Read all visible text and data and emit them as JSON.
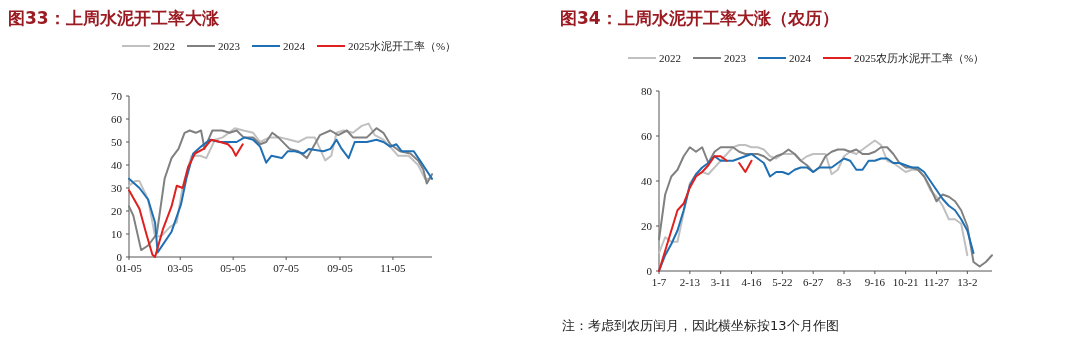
{
  "chart_data": [
    {
      "type": "line",
      "title": "图33：上周水泥开工率大涨",
      "legend": "top",
      "xlim": [
        "--01-05",
        "--12-20"
      ],
      "ylim": [
        0,
        70
      ],
      "yticks": [
        0,
        10,
        20,
        30,
        40,
        50,
        60,
        70
      ],
      "xticks": [
        {
          "value": "--01-05",
          "label": "01-05"
        },
        {
          "value": "--03-05",
          "label": "03-05"
        },
        {
          "value": "--05-05",
          "label": "05-05"
        },
        {
          "value": "--07-05",
          "label": "07-05"
        },
        {
          "value": "--09-05",
          "label": "09-05"
        },
        {
          "value": "--11-05",
          "label": "11-05"
        }
      ],
      "series": [
        {
          "name": "2022",
          "color": "#c0c0c0",
          "x": [
            "--01-05",
            "--01-12",
            "--01-17",
            "--01-27",
            "--02-04",
            "--02-11",
            "--02-21",
            "--03-01",
            "--03-08",
            "--03-18",
            "--03-28",
            "--04-04",
            "--04-14",
            "--04-23",
            "--05-07",
            "--05-17",
            "--05-28",
            "--06-05",
            "--06-16",
            "--06-28",
            "--07-09",
            "--07-19",
            "--07-29",
            "--08-07",
            "--08-19",
            "--08-26",
            "--09-01",
            "--09-09",
            "--09-20",
            "--09-30",
            "--10-08",
            "--10-15",
            "--10-25",
            "--11-04",
            "--11-11",
            "--11-23",
            "--12-04",
            "--12-12",
            "--12-20"
          ],
          "values": [
            31,
            33,
            33,
            25,
            9,
            9,
            13,
            15,
            31,
            44,
            44,
            43,
            51,
            52,
            56,
            55,
            54,
            50,
            52,
            52,
            51,
            50,
            52,
            52,
            42,
            44,
            54,
            55,
            54,
            57,
            58,
            53,
            51,
            47,
            44,
            44,
            40,
            34,
            34
          ]
        },
        {
          "name": "2023",
          "color": "#808080",
          "x": [
            "--01-05",
            "--01-10",
            "--01-19",
            "--01-27",
            "--02-06",
            "--02-15",
            "--02-23",
            "--03-03",
            "--03-10",
            "--03-16",
            "--03-23",
            "--03-29",
            "--04-02",
            "--04-11",
            "--04-22",
            "--05-01",
            "--05-09",
            "--05-17",
            "--05-28",
            "--06-05",
            "--06-12",
            "--06-19",
            "--06-26",
            "--07-09",
            "--07-19",
            "--07-29",
            "--08-13",
            "--08-25",
            "--09-03",
            "--09-13",
            "--09-20",
            "--10-06",
            "--10-17",
            "--10-25",
            "--11-02",
            "--11-13",
            "--11-25",
            "--12-04",
            "--12-10",
            "--12-14",
            "--12-20"
          ],
          "values": [
            22,
            18,
            3,
            5,
            10,
            34,
            43,
            47,
            54,
            55,
            54,
            55,
            47,
            55,
            55,
            54,
            55,
            52,
            52,
            49,
            50,
            54,
            52,
            47,
            46,
            43,
            53,
            55,
            53,
            55,
            52,
            52,
            56,
            54,
            49,
            46,
            45,
            42,
            38,
            32,
            36
          ]
        },
        {
          "name": "2024",
          "color": "#1f6fb4",
          "x": [
            "--01-05",
            "--01-17",
            "--01-27",
            "--02-04",
            "--02-07",
            "--02-23",
            "--03-06",
            "--03-12",
            "--03-20",
            "--03-29",
            "--04-08",
            "--04-20",
            "--05-01",
            "--05-09",
            "--05-18",
            "--05-28",
            "--06-05",
            "--06-12",
            "--06-18",
            "--06-30",
            "--07-07",
            "--07-15",
            "--07-25",
            "--07-31",
            "--08-17",
            "--08-25",
            "--09-01",
            "--09-07",
            "--09-15",
            "--09-22",
            "--10-06",
            "--10-17",
            "--10-25",
            "--11-02",
            "--11-09",
            "--11-15",
            "--11-29",
            "--12-06",
            "--12-20"
          ],
          "values": [
            34,
            30,
            25,
            15,
            2,
            11,
            23,
            34,
            45,
            48,
            51,
            50,
            50,
            50,
            52,
            51,
            48,
            41,
            44,
            43,
            46,
            46,
            45,
            47,
            46,
            47,
            51,
            47,
            43,
            50,
            50,
            51,
            50,
            48,
            49,
            46,
            46,
            42,
            34
          ]
        },
        {
          "name": "2025水泥开工率（%）",
          "color": "#e0201f",
          "x": [
            "--01-05",
            "--01-17",
            "--01-25",
            "--02-01",
            "--02-04",
            "--02-13",
            "--02-23",
            "--03-01",
            "--03-08",
            "--03-14",
            "--03-22",
            "--04-01",
            "--04-10",
            "--04-20",
            "--04-29",
            "--05-04",
            "--05-08",
            "--05-16"
          ],
          "values": [
            29,
            21,
            10,
            1,
            0,
            12,
            22,
            31,
            30,
            39,
            45,
            47,
            51,
            50,
            49,
            47,
            44,
            49
          ]
        }
      ]
    },
    {
      "type": "line",
      "title": "图34：上周水泥开工率大涨（农历）",
      "legend": "top",
      "ylim": [
        0,
        80
      ],
      "yticks": [
        0,
        20,
        40,
        60,
        80
      ],
      "categories": [
        "1-7",
        null,
        null,
        null,
        null,
        "2-13",
        null,
        null,
        null,
        null,
        "3-11",
        null,
        null,
        null,
        null,
        "4-16",
        null,
        null,
        null,
        null,
        "5-22",
        null,
        null,
        null,
        null,
        "6-27",
        null,
        null,
        null,
        null,
        "8-3",
        null,
        null,
        null,
        null,
        "9-16",
        null,
        null,
        null,
        null,
        "10-21",
        null,
        null,
        null,
        null,
        "11-27",
        null,
        null,
        null,
        null,
        "13-2",
        null,
        null,
        null,
        null
      ],
      "annotations": [
        "注：考虑到农历闰月，因此横坐标按13个月作图"
      ],
      "series": [
        {
          "name": "2022",
          "color": "#c0c0c0",
          "values": [
            8,
            15,
            13,
            13,
            26,
            39,
            43,
            44,
            43,
            46,
            49,
            52,
            55,
            56,
            56,
            55,
            55,
            54,
            51,
            50,
            52,
            52,
            52,
            49,
            51,
            52,
            52,
            52,
            43,
            45,
            51,
            53,
            52,
            54,
            56,
            58,
            56,
            49,
            48,
            46,
            44,
            45,
            45,
            42,
            36,
            33,
            29,
            23,
            23,
            21,
            7,
            null,
            null,
            null,
            null
          ]
        },
        {
          "name": "2023",
          "color": "#808080",
          "values": [
            14,
            34,
            42,
            45,
            51,
            55,
            53,
            55,
            48,
            53,
            55,
            55,
            55,
            53,
            52,
            52,
            52,
            51,
            49,
            51,
            52,
            54,
            52,
            49,
            47,
            44,
            46,
            51,
            53,
            54,
            54,
            53,
            54,
            52,
            52,
            53,
            55,
            55,
            52,
            48,
            46,
            46,
            45,
            42,
            37,
            31,
            34,
            33,
            31,
            27,
            20,
            4,
            2,
            4,
            7
          ]
        },
        {
          "name": "2024",
          "color": "#1f6fb4",
          "values": [
            0,
            7,
            12,
            18,
            27,
            38,
            43,
            46,
            48,
            51,
            49,
            49,
            49,
            50,
            51,
            52,
            50,
            48,
            42,
            44,
            44,
            43,
            45,
            46,
            46,
            44,
            46,
            46,
            46,
            48,
            50,
            49,
            45,
            45,
            49,
            49,
            50,
            50,
            48,
            48,
            47,
            46,
            46,
            44,
            40,
            36,
            32,
            29,
            27,
            23,
            18,
            8,
            null,
            null,
            null
          ]
        },
        {
          "name": "2025农历水泥开工率（%）",
          "color": "#e0201f",
          "values": [
            0,
            9,
            18,
            27,
            30,
            37,
            42,
            44,
            47,
            51,
            51,
            49,
            null,
            48,
            44,
            49,
            null,
            null,
            null,
            null,
            null,
            null,
            null,
            null,
            null,
            null,
            null,
            null,
            null,
            null,
            null,
            null,
            null,
            null,
            null,
            null,
            null,
            null,
            null,
            null,
            null,
            null,
            null,
            null,
            null,
            null,
            null,
            null,
            null,
            null,
            null,
            null,
            null,
            null,
            null
          ]
        }
      ]
    }
  ]
}
